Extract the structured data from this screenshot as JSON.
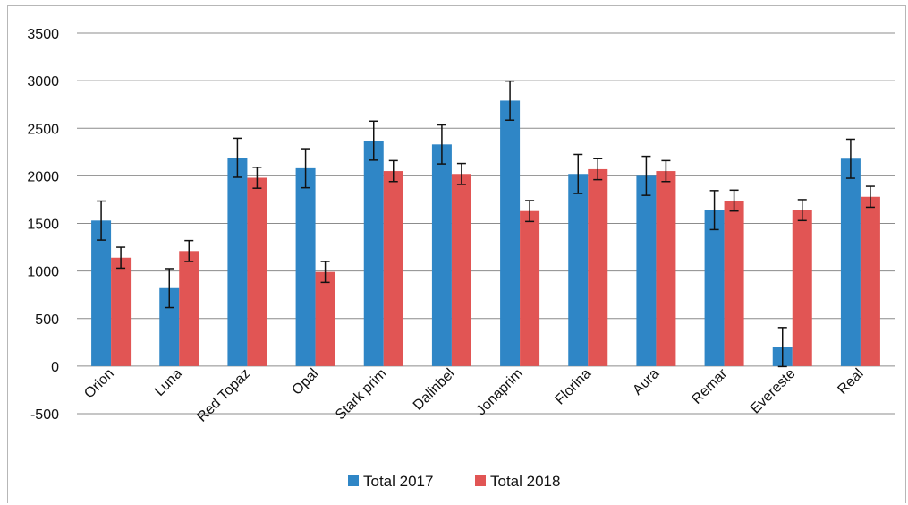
{
  "chart_data": {
    "type": "bar",
    "categories": [
      "Orion",
      "Luna",
      "Red Topaz",
      "Opal",
      "Stark prim",
      "Dalinbel",
      "Jonaprim",
      "Florina",
      "Aura",
      "Remar",
      "Evereste",
      "Real"
    ],
    "series": [
      {
        "name": "Total 2017",
        "color": "#2f86c6",
        "values": [
          1530,
          820,
          2190,
          2080,
          2370,
          2330,
          2790,
          2020,
          2000,
          1640,
          200,
          2180
        ],
        "errors": [
          205,
          205,
          205,
          205,
          205,
          205,
          205,
          205,
          205,
          205,
          205,
          205
        ]
      },
      {
        "name": "Total 2018",
        "color": "#e15554",
        "values": [
          1140,
          1210,
          1980,
          990,
          2050,
          2020,
          1630,
          2070,
          2050,
          1740,
          1640,
          1780
        ],
        "errors": [
          110,
          110,
          110,
          110,
          110,
          110,
          110,
          110,
          110,
          110,
          110,
          110
        ]
      }
    ],
    "yticks": [
      "3500",
      "3000",
      "2500",
      "2000",
      "1500",
      "1000",
      "500",
      "0",
      "-500"
    ],
    "ylim": [
      -500,
      3500
    ],
    "grid": true,
    "legend_position": "bottom",
    "title": "",
    "xlabel": "",
    "ylabel": ""
  }
}
